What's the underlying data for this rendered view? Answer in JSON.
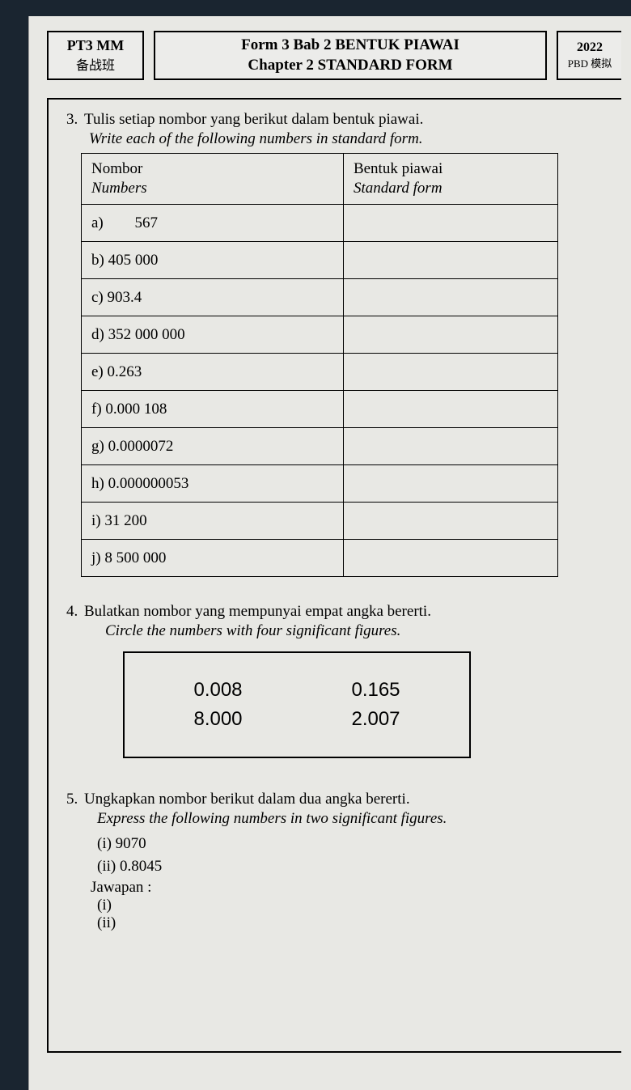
{
  "header": {
    "left_line1": "PT3 MM",
    "left_line2": "备战班",
    "mid_line1": "Form 3 Bab 2 BENTUK PIAWAI",
    "mid_line2": "Chapter 2 STANDARD FORM",
    "right_line1": "2022",
    "right_line2": "PBD 模拟"
  },
  "q3": {
    "num": "3.",
    "text": "Tulis setiap nombor yang berikut dalam bentuk piawai.",
    "sub": "Write each of the following numbers in standard form.",
    "col1_head": "Nombor",
    "col1_sub": "Numbers",
    "col2_head": "Bentuk piawai",
    "col2_sub": "Standard form",
    "rows": {
      "a_label": "a)",
      "a_val": "567",
      "b": "b) 405 000",
      "c": "c) 903.4",
      "d": "d) 352 000 000",
      "e": "e) 0.263",
      "f": "f) 0.000 108",
      "g": "g) 0.0000072",
      "h": "h) 0.000000053",
      "i": "i) 31 200",
      "j": "j) 8 500 000"
    }
  },
  "q4": {
    "num": "4.",
    "text": "Bulatkan nombor yang mempunyai empat angka bererti.",
    "sub": "Circle the numbers with four significant figures.",
    "box": {
      "r1c1": "0.008",
      "r1c2": "0.165",
      "r2c1": "8.000",
      "r2c2": "2.007"
    }
  },
  "q5": {
    "num": "5.",
    "text": "Ungkapkan nombor berikut dalam dua angka bererti.",
    "sub": "Express the following numbers in two significant figures.",
    "i": "(i) 9070",
    "ii": "(ii) 0.8045",
    "ans_label": "Jawapan :",
    "ans_i": "(i)",
    "ans_ii": "(ii)"
  }
}
